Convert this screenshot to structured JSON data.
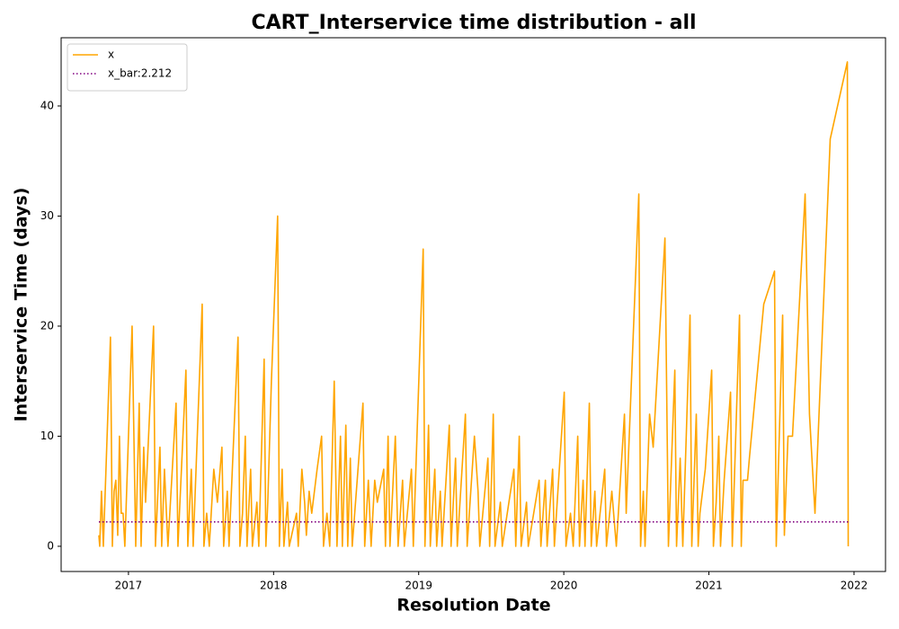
{
  "chart_data": {
    "type": "line",
    "title": "CART_Interservice time distribution - all",
    "xlabel": "Resolution Date",
    "ylabel": "Interservice Time (days)",
    "xlim": [
      2016.536,
      2022.217
    ],
    "xticks": [
      2017,
      2018,
      2019,
      2020,
      2021,
      2022
    ],
    "ylim": [
      -2.29,
      46.2
    ],
    "yticks": [
      0,
      10,
      20,
      30,
      40
    ],
    "legend": "upper left",
    "grid": false,
    "series": [
      {
        "name": "x",
        "color": "#ffa500",
        "style": "solid",
        "x": [
          2016.796,
          2016.802,
          2016.814,
          2016.827,
          2016.876,
          2016.889,
          2016.901,
          2016.913,
          2016.926,
          2016.938,
          2016.95,
          2016.963,
          2016.975,
          2017.025,
          2017.05,
          2017.074,
          2017.087,
          2017.105,
          2017.118,
          2017.173,
          2017.186,
          2017.217,
          2017.229,
          2017.248,
          2017.272,
          2017.328,
          2017.341,
          2017.396,
          2017.409,
          2017.433,
          2017.446,
          2017.508,
          2017.52,
          2017.539,
          2017.557,
          2017.588,
          2017.613,
          2017.644,
          2017.656,
          2017.681,
          2017.693,
          2017.755,
          2017.768,
          2017.786,
          2017.805,
          2017.817,
          2017.842,
          2017.854,
          2017.885,
          2017.898,
          2017.935,
          2017.947,
          2017.96,
          2017.985,
          2018.028,
          2018.04,
          2018.059,
          2018.071,
          2018.096,
          2018.108,
          2018.158,
          2018.17,
          2018.195,
          2018.214,
          2018.226,
          2018.245,
          2018.263,
          2018.3,
          2018.331,
          2018.344,
          2018.368,
          2018.387,
          2018.418,
          2018.437,
          2018.461,
          2018.474,
          2018.498,
          2018.511,
          2018.529,
          2018.542,
          2018.616,
          2018.628,
          2018.653,
          2018.672,
          2018.697,
          2018.715,
          2018.759,
          2018.771,
          2018.789,
          2018.802,
          2018.839,
          2018.858,
          2018.889,
          2018.901,
          2018.95,
          2018.963,
          2019.031,
          2019.043,
          2019.068,
          2019.08,
          2019.111,
          2019.124,
          2019.149,
          2019.161,
          2019.211,
          2019.223,
          2019.254,
          2019.266,
          2019.322,
          2019.334,
          2019.384,
          2019.409,
          2019.421,
          2019.477,
          2019.489,
          2019.514,
          2019.526,
          2019.563,
          2019.576,
          2019.656,
          2019.669,
          2019.693,
          2019.706,
          2019.743,
          2019.755,
          2019.83,
          2019.842,
          2019.873,
          2019.885,
          2019.923,
          2019.935,
          2020.003,
          2020.015,
          2020.046,
          2020.065,
          2020.096,
          2020.108,
          2020.133,
          2020.146,
          2020.176,
          2020.189,
          2020.214,
          2020.226,
          2020.282,
          2020.294,
          2020.331,
          2020.362,
          2020.418,
          2020.43,
          2020.517,
          2020.529,
          2020.548,
          2020.56,
          2020.591,
          2020.616,
          2020.697,
          2020.721,
          2020.765,
          2020.777,
          2020.802,
          2020.82,
          2020.87,
          2020.882,
          2020.913,
          2020.926,
          2020.938,
          2020.975,
          2021.019,
          2021.031,
          2021.05,
          2021.068,
          2021.08,
          2021.105,
          2021.149,
          2021.161,
          2021.211,
          2021.223,
          2021.235,
          2021.266,
          2021.279,
          2021.378,
          2021.452,
          2021.464,
          2021.508,
          2021.52,
          2021.545,
          2021.576,
          2021.663,
          2021.693,
          2021.731,
          2021.836,
          2021.954,
          2021.96
        ],
        "values": [
          1,
          0,
          5,
          0,
          19,
          0,
          5,
          6,
          1,
          10,
          3,
          3,
          0,
          20,
          0,
          13,
          0,
          9,
          4,
          20,
          0,
          9,
          0,
          7,
          0,
          13,
          0,
          16,
          0,
          7,
          0,
          22,
          0,
          3,
          0,
          7,
          4,
          9,
          0,
          5,
          0,
          19,
          0,
          3,
          10,
          0,
          7,
          0,
          4,
          0,
          17,
          0,
          4,
          15,
          30,
          0,
          7,
          0,
          4,
          0,
          3,
          0,
          7,
          4,
          1,
          5,
          3,
          7,
          10,
          0,
          3,
          0,
          15,
          0,
          10,
          0,
          11,
          0,
          8,
          0,
          13,
          0,
          6,
          0,
          6,
          4,
          7,
          0,
          10,
          0,
          10,
          0,
          6,
          0,
          7,
          0,
          27,
          0,
          11,
          0,
          7,
          0,
          5,
          0,
          11,
          0,
          8,
          0,
          12,
          0,
          10,
          5,
          0,
          8,
          0,
          12,
          0,
          4,
          0,
          7,
          0,
          10,
          0,
          4,
          0,
          6,
          0,
          6,
          0,
          7,
          0,
          14,
          0,
          3,
          0,
          10,
          0,
          6,
          0,
          13,
          0,
          5,
          0,
          7,
          0,
          5,
          0,
          12,
          3,
          32,
          0,
          5,
          0,
          12,
          9,
          28,
          0,
          16,
          0,
          8,
          0,
          21,
          0,
          12,
          0,
          3,
          7,
          16,
          0,
          4,
          10,
          0,
          6,
          14,
          0,
          21,
          0,
          6,
          6,
          8,
          22,
          25,
          0,
          21,
          1,
          10,
          10,
          32,
          12,
          3,
          37,
          44,
          0
        ]
      },
      {
        "name": "x_bar:2.212",
        "color": "#800080",
        "style": "dotted",
        "x": [
          2016.796,
          2021.96
        ],
        "values": [
          2.212,
          2.212
        ]
      }
    ]
  }
}
